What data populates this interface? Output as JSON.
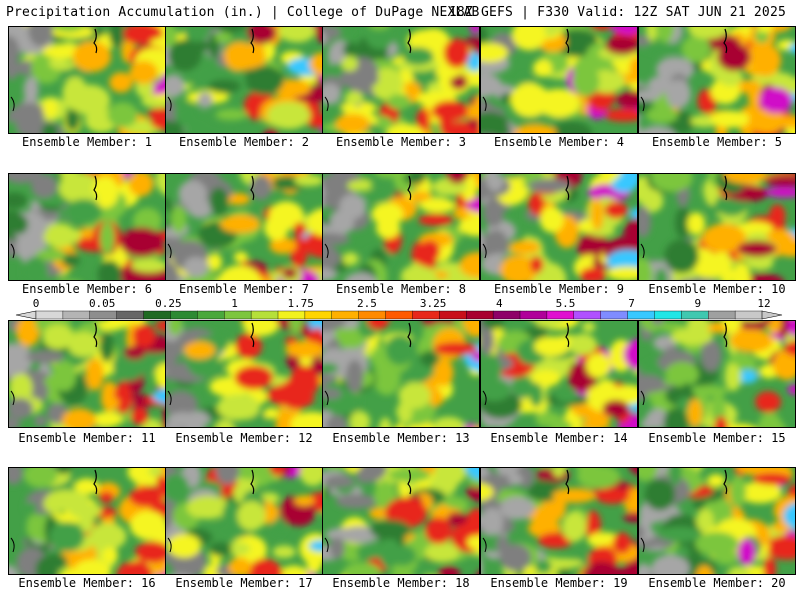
{
  "header": {
    "left": "Precipitation Accumulation (in.) | College of DuPage NEXLAB",
    "right": "18Z GEFS | F330 Valid: 12Z SAT JUN 21 2025"
  },
  "panel_label_prefix": "Ensemble Member: ",
  "members": [
    "1",
    "2",
    "3",
    "4",
    "5",
    "6",
    "7",
    "8",
    "9",
    "10",
    "11",
    "12",
    "13",
    "14",
    "15",
    "16",
    "17",
    "18",
    "19",
    "20"
  ],
  "colorbar": {
    "tick_labels": [
      "0",
      "0.05",
      "0.25",
      "1",
      "1.75",
      "2.5",
      "3.25",
      "4",
      "5.5",
      "7",
      "9",
      "12"
    ],
    "colors": [
      "#d8d8d8",
      "#b4b4b4",
      "#8e8e8e",
      "#666666",
      "#1f6a22",
      "#2d8a33",
      "#4aa83c",
      "#7cc63e",
      "#b6e03a",
      "#f2f21e",
      "#ffd500",
      "#ffb000",
      "#ff8a00",
      "#ff5a00",
      "#e8281a",
      "#c8101a",
      "#a80030",
      "#8e0068",
      "#b0009a",
      "#e010d0",
      "#b050ff",
      "#7f8cff",
      "#38c8ff",
      "#20e6e6",
      "#40c8b0",
      "#9fa0a0",
      "#c8c8c8"
    ]
  },
  "map_palette": {
    "gray_low": "#a6a6a6",
    "gray_mid": "#7f7f7f",
    "green_dark": "#2e7d32",
    "green": "#43a047",
    "green_light": "#7cc63e",
    "yellow_green": "#c8e63a",
    "yellow": "#f5f520",
    "orange": "#ffb000",
    "red": "#e8281a",
    "dark_red": "#a80030",
    "magenta": "#d010c8",
    "cyan": "#38c8ff"
  }
}
